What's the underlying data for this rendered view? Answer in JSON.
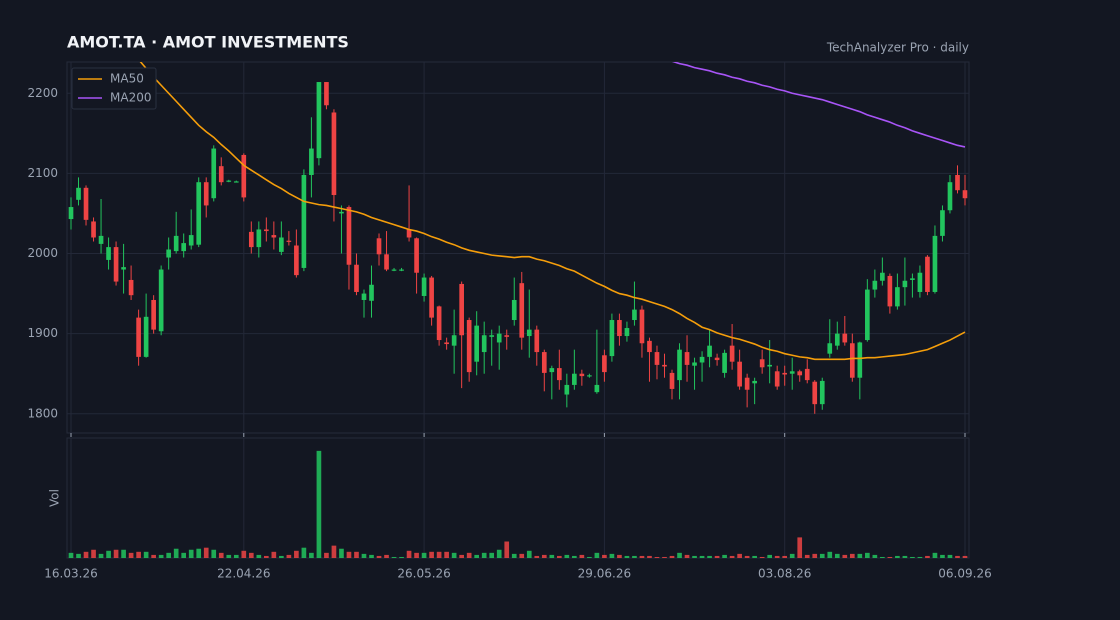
{
  "chart_data": {
    "type": "candlestick",
    "title": "AMOT.TA  ·  AMOT INVESTMENTS",
    "subtitle": "TechAnalyzer Pro · daily",
    "volume_label": "Vol",
    "up_color": "#22c55e",
    "down_color": "#ef4444",
    "ylim": [
      1776,
      2239
    ],
    "yticks": [
      1800,
      1900,
      2000,
      2100,
      2200
    ],
    "grid": true,
    "legend": "top-left",
    "categories": [
      "16.03.26",
      null,
      null,
      null,
      null,
      null,
      null,
      null,
      null,
      null,
      null,
      null,
      null,
      null,
      null,
      null,
      null,
      null,
      null,
      null,
      null,
      null,
      null,
      "22.04.26",
      null,
      null,
      null,
      null,
      null,
      null,
      null,
      null,
      null,
      null,
      null,
      null,
      null,
      null,
      null,
      null,
      null,
      null,
      null,
      null,
      null,
      null,
      null,
      "26.05.26",
      null,
      null,
      null,
      null,
      null,
      null,
      null,
      null,
      null,
      null,
      null,
      null,
      null,
      null,
      null,
      null,
      null,
      null,
      null,
      null,
      null,
      null,
      null,
      "29.06.26",
      null,
      null,
      null,
      null,
      null,
      null,
      null,
      null,
      null,
      null,
      null,
      null,
      null,
      null,
      null,
      null,
      null,
      null,
      null,
      null,
      null,
      null,
      null,
      "03.08.26",
      null,
      null,
      null,
      null,
      null,
      null,
      null,
      null,
      null,
      null,
      null,
      null,
      null,
      null,
      null,
      null,
      null,
      null,
      null,
      null,
      null,
      null,
      null,
      "06.09.26"
    ],
    "open": [
      2043,
      2067,
      2082,
      2040,
      2012,
      1992,
      2008,
      1980,
      1967,
      1920,
      1871,
      1942,
      1903,
      1995,
      2003,
      2003,
      2010,
      2011,
      2089,
      2069,
      2109,
      2090,
      2090,
      2123,
      2027,
      2008,
      2030,
      2023,
      2002,
      2016,
      2010,
      1982,
      2098,
      2119,
      2214,
      2176,
      2050,
      2058,
      1986,
      1942,
      1941,
      2019,
      1999,
      1980,
      1980,
      2030,
      2019,
      1947,
      1970,
      1934,
      1889,
      1885,
      1962,
      1917,
      1865,
      1877,
      1896,
      1889,
      1898,
      1917,
      1963,
      1897,
      1905,
      1877,
      1852,
      1857,
      1824,
      1836,
      1850,
      1848,
      1827,
      1873,
      1872,
      1917,
      1897,
      1917,
      1930,
      1891,
      1877,
      1861,
      1851,
      1842,
      1877,
      1860,
      1864,
      1871,
      1870,
      1851,
      1885,
      1865,
      1845,
      1838,
      1868,
      1859,
      1853,
      1851,
      1850,
      1853,
      1856,
      1840,
      1812,
      1875,
      1885,
      1900,
      1888,
      1845,
      1892,
      1955,
      1966,
      1972,
      1934,
      1958,
      1967,
      1952,
      1996,
      1952,
      2022,
      2054,
      2098,
      2079
    ],
    "high": [
      2070,
      2095,
      2085,
      2045,
      2068,
      2020,
      2015,
      2012,
      1985,
      1930,
      1950,
      1948,
      1985,
      2020,
      2052,
      2025,
      2055,
      2095,
      2095,
      2135,
      2120,
      2092,
      2091,
      2125,
      2040,
      2040,
      2045,
      2040,
      2040,
      2028,
      2030,
      2105,
      2170,
      2214,
      2214,
      2180,
      2060,
      2060,
      2000,
      1955,
      1985,
      2025,
      2028,
      1982,
      1982,
      2085,
      2020,
      1975,
      1972,
      1935,
      1895,
      1930,
      1965,
      1920,
      1928,
      1915,
      1905,
      1910,
      1905,
      1970,
      1977,
      1955,
      1910,
      1880,
      1860,
      1880,
      1850,
      1880,
      1855,
      1850,
      1905,
      1880,
      1925,
      1925,
      1915,
      1965,
      1935,
      1895,
      1885,
      1875,
      1855,
      1888,
      1898,
      1870,
      1878,
      1905,
      1875,
      1880,
      1912,
      1880,
      1850,
      1845,
      1880,
      1892,
      1860,
      1860,
      1870,
      1855,
      1868,
      1842,
      1845,
      1918,
      1915,
      1922,
      1900,
      1890,
      1968,
      1980,
      1995,
      1975,
      1975,
      1995,
      1975,
      1985,
      1998,
      2035,
      2060,
      2098,
      2110,
      2098
    ],
    "low": [
      2030,
      2060,
      2035,
      2015,
      2000,
      1980,
      1960,
      1950,
      1942,
      1860,
      1870,
      1900,
      1898,
      1980,
      2000,
      1995,
      2005,
      2008,
      2045,
      2065,
      2085,
      2089,
      2089,
      2065,
      2000,
      1995,
      2015,
      2005,
      1998,
      2010,
      1970,
      1978,
      2070,
      2110,
      2180,
      2040,
      2000,
      1955,
      1948,
      1920,
      1920,
      1985,
      1978,
      1978,
      1978,
      2015,
      1950,
      1940,
      1910,
      1885,
      1880,
      1850,
      1832,
      1840,
      1848,
      1850,
      1860,
      1855,
      1880,
      1910,
      1880,
      1870,
      1860,
      1828,
      1818,
      1830,
      1808,
      1830,
      1835,
      1845,
      1825,
      1840,
      1865,
      1885,
      1890,
      1910,
      1870,
      1840,
      1843,
      1845,
      1818,
      1818,
      1840,
      1830,
      1840,
      1858,
      1860,
      1845,
      1855,
      1830,
      1808,
      1812,
      1850,
      1838,
      1830,
      1835,
      1830,
      1840,
      1838,
      1800,
      1805,
      1870,
      1880,
      1885,
      1840,
      1818,
      1890,
      1945,
      1960,
      1925,
      1930,
      1935,
      1945,
      1945,
      1948,
      1950,
      2015,
      2050,
      2075,
      2060
    ],
    "close": [
      2058,
      2082,
      2042,
      2020,
      2022,
      2008,
      1965,
      1983,
      1948,
      1871,
      1921,
      1905,
      1980,
      2005,
      2022,
      2013,
      2023,
      2089,
      2060,
      2131,
      2089,
      2091,
      2090,
      2070,
      2008,
      2030,
      2028,
      2020,
      2020,
      2015,
      1973,
      2098,
      2131,
      2214,
      2185,
      2073,
      2052,
      1986,
      1952,
      1950,
      1961,
      1999,
      1980,
      1980,
      1980,
      2020,
      1976,
      1970,
      1920,
      1892,
      1887,
      1898,
      1898,
      1852,
      1910,
      1898,
      1898,
      1900,
      1896,
      1942,
      1895,
      1905,
      1877,
      1851,
      1857,
      1842,
      1836,
      1850,
      1847,
      1848,
      1836,
      1852,
      1917,
      1897,
      1907,
      1930,
      1888,
      1877,
      1861,
      1859,
      1831,
      1880,
      1861,
      1864,
      1871,
      1885,
      1867,
      1876,
      1865,
      1834,
      1830,
      1841,
      1858,
      1861,
      1834,
      1849,
      1853,
      1848,
      1842,
      1812,
      1841,
      1888,
      1900,
      1889,
      1845,
      1889,
      1955,
      1966,
      1976,
      1934,
      1958,
      1966,
      1969,
      1976,
      1952,
      2022,
      2054,
      2089,
      2079,
      2069
    ],
    "volume": [
      5,
      4,
      6,
      8,
      4,
      7,
      8,
      8,
      5,
      6,
      6,
      3,
      3,
      5,
      9,
      5,
      8,
      9,
      10,
      8,
      5,
      3,
      3,
      7,
      5,
      3,
      2,
      6,
      2,
      3,
      7,
      10,
      5,
      104,
      5,
      12,
      9,
      6,
      6,
      4,
      3,
      2,
      3,
      1,
      1,
      7,
      5,
      5,
      6,
      6,
      6,
      5,
      3,
      5,
      3,
      5,
      5,
      8,
      16,
      4,
      4,
      7,
      2,
      3,
      3,
      2,
      3,
      2,
      3,
      1,
      5,
      3,
      4,
      3,
      2,
      2,
      2,
      2,
      1,
      1,
      2,
      5,
      3,
      2,
      2,
      2,
      2,
      3,
      2,
      4,
      2,
      2,
      1,
      3,
      2,
      2,
      4,
      20,
      3,
      4,
      4,
      6,
      4,
      3,
      4,
      4,
      5,
      3,
      1,
      1,
      2,
      2,
      1,
      1,
      2,
      5,
      3,
      3,
      2,
      2
    ],
    "series": [
      {
        "name": "MA50",
        "color": "#f59e0b",
        "values": [
          null,
          null,
          null,
          null,
          null,
          null,
          null,
          null,
          null,
          2242,
          2231,
          2220,
          2210,
          2200,
          2190,
          2180,
          2170,
          2160,
          2152,
          2145,
          2136,
          2128,
          2119,
          2110,
          2104,
          2098,
          2092,
          2086,
          2081,
          2075,
          2070,
          2065,
          2063,
          2061,
          2060,
          2058,
          2056,
          2054,
          2052,
          2049,
          2045,
          2042,
          2039,
          2036,
          2033,
          2030,
          2028,
          2025,
          2021,
          2018,
          2014,
          2011,
          2007,
          2004,
          2002,
          2000,
          1998,
          1997,
          1996,
          1995,
          1996,
          1996,
          1993,
          1991,
          1988,
          1985,
          1981,
          1978,
          1973,
          1968,
          1963,
          1959,
          1954,
          1950,
          1948,
          1945,
          1943,
          1940,
          1937,
          1934,
          1930,
          1925,
          1919,
          1914,
          1908,
          1905,
          1901,
          1898,
          1895,
          1893,
          1890,
          1887,
          1883,
          1880,
          1878,
          1875,
          1873,
          1871,
          1870,
          1868,
          1868,
          1868,
          1868,
          1868,
          1869,
          1869,
          1870,
          1870,
          1871,
          1872,
          1873,
          1874,
          1876,
          1878,
          1880,
          1884,
          1888,
          1892,
          1897,
          1902
        ]
      },
      {
        "name": "MA200",
        "color": "#a855f7",
        "values": [
          null,
          null,
          null,
          null,
          null,
          null,
          null,
          null,
          null,
          null,
          null,
          null,
          null,
          null,
          null,
          null,
          null,
          null,
          null,
          null,
          null,
          null,
          null,
          null,
          null,
          null,
          null,
          null,
          null,
          null,
          null,
          null,
          null,
          null,
          null,
          null,
          null,
          null,
          null,
          null,
          null,
          null,
          null,
          null,
          null,
          null,
          null,
          null,
          null,
          null,
          null,
          null,
          null,
          null,
          null,
          null,
          null,
          null,
          null,
          null,
          null,
          null,
          null,
          null,
          null,
          null,
          null,
          null,
          null,
          null,
          null,
          null,
          null,
          null,
          null,
          null,
          null,
          null,
          null,
          2243,
          2240,
          2237,
          2235,
          2232,
          2230,
          2228,
          2225,
          2223,
          2220,
          2218,
          2215,
          2213,
          2210,
          2208,
          2205,
          2203,
          2200,
          2198,
          2196,
          2194,
          2192,
          2189,
          2186,
          2183,
          2180,
          2177,
          2173,
          2170,
          2167,
          2164,
          2160,
          2157,
          2153,
          2150,
          2147,
          2144,
          2141,
          2138,
          2135,
          2133
        ]
      }
    ]
  }
}
